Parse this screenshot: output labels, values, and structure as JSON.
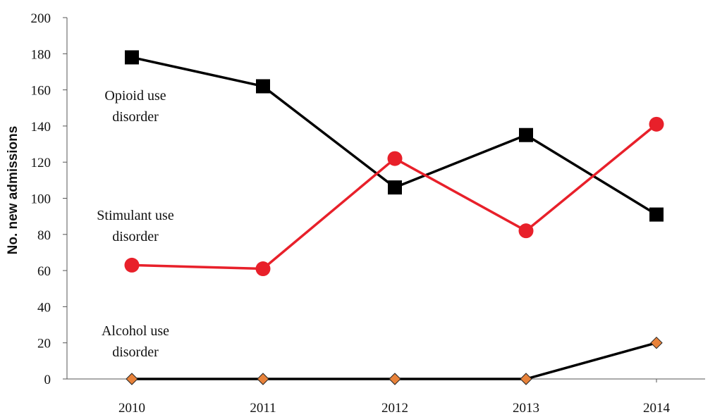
{
  "chart_data": {
    "type": "line",
    "title": "",
    "xlabel": "",
    "ylabel": "No. new admissions",
    "ylim": [
      0,
      200
    ],
    "yticks": [
      "0",
      "20",
      "40",
      "60",
      "80",
      "100",
      "120",
      "140",
      "160",
      "180",
      "200"
    ],
    "categories": [
      "2010",
      "2011",
      "2012",
      "2013",
      "2014"
    ],
    "grid": false,
    "legend": "none",
    "series": [
      {
        "name": "Opioid use disorder",
        "label_lines": [
          "Opioid use",
          "disorder"
        ],
        "values": [
          178,
          162,
          106,
          135,
          91
        ],
        "line_color": "#000000",
        "marker": "square",
        "marker_color": "#000000"
      },
      {
        "name": "Stimulant use disorder",
        "label_lines": [
          "Stimulant use",
          "disorder"
        ],
        "values": [
          63,
          61,
          122,
          82,
          141
        ],
        "line_color": "#e8202a",
        "marker": "circle",
        "marker_color": "#e8202a"
      },
      {
        "name": "Alcohol use disorder",
        "label_lines": [
          "Alcohol use",
          "disorder"
        ],
        "values": [
          0,
          0,
          0,
          0,
          20
        ],
        "line_color": "#000000",
        "marker": "diamond",
        "marker_color": "#e8823a"
      }
    ]
  }
}
